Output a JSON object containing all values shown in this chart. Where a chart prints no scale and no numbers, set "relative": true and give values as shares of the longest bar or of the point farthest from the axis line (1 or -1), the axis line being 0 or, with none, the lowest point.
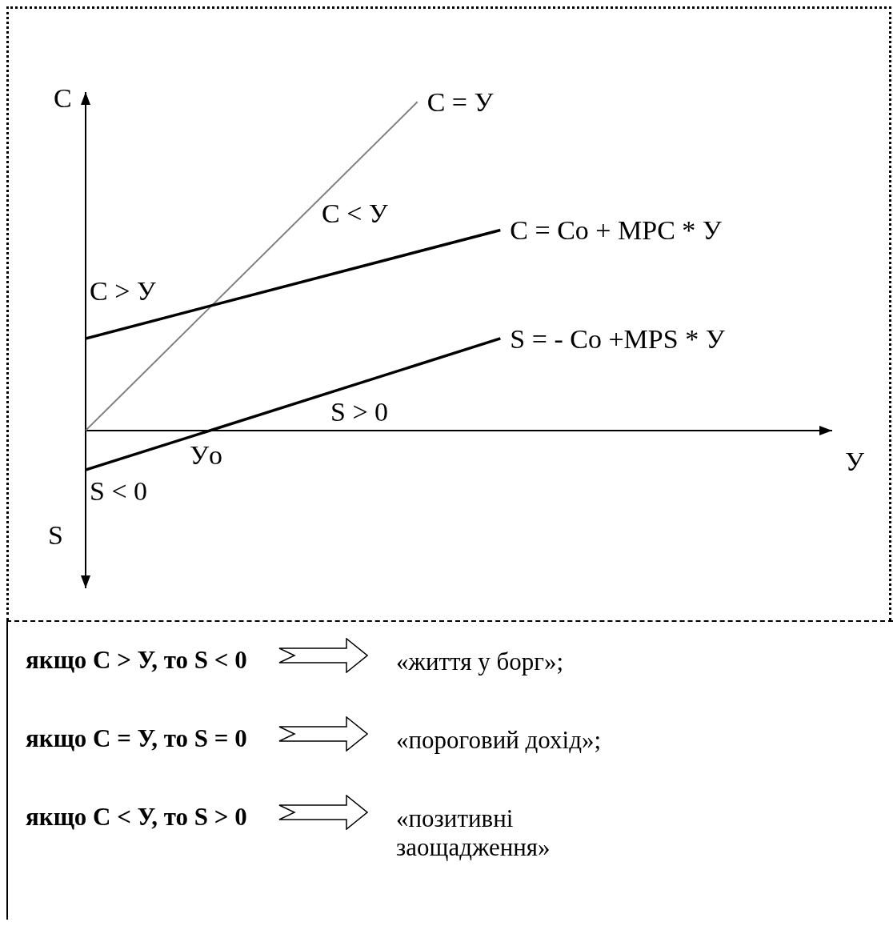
{
  "chart_data": [
    {
      "type": "line",
      "relative": true,
      "ylabel": "C",
      "xlabel": "У",
      "legend": false,
      "marker": "none",
      "line_style": "solid",
      "categories": [
        null,
        null,
        null,
        null,
        null,
        null,
        null,
        null,
        null,
        null,
        null,
        null,
        null,
        null,
        null,
        null,
        null,
        null,
        null
      ],
      "series": [
        {
          "name": "C = У",
          "color": "#808080",
          "values": [
            0,
            null,
            null,
            null,
            null,
            null,
            null,
            null,
            1,
            null,
            null,
            null,
            null,
            null,
            null,
            null,
            null,
            null,
            null
          ]
        },
        {
          "name": "C = Co + MPC * У",
          "color": "#000000",
          "values": [
            0.28,
            null,
            null,
            null,
            null,
            null,
            null,
            null,
            null,
            null,
            0.61,
            null,
            null,
            null,
            null,
            null,
            null,
            null,
            null
          ]
        },
        {
          "name": "S = - Co +MPS * У",
          "color": "#000000",
          "values": [
            -0.12,
            null,
            null,
            null,
            null,
            null,
            null,
            null,
            null,
            null,
            0.28,
            null,
            null,
            null,
            null,
            null,
            null,
            null,
            null
          ]
        }
      ],
      "annotations": [
        "C > У",
        "C < У",
        "S > 0",
        "Уo",
        "S < 0",
        "S"
      ]
    },
    {
      "type": "other",
      "annotations": [
        "якщо C > У, то S < 0",
        "«життя у борг»;",
        "якщо C = У, то S = 0",
        "«пороговий дохід»;",
        "якщо C < У, то S > 0",
        "«позитивні заощадження»"
      ]
    }
  ]
}
